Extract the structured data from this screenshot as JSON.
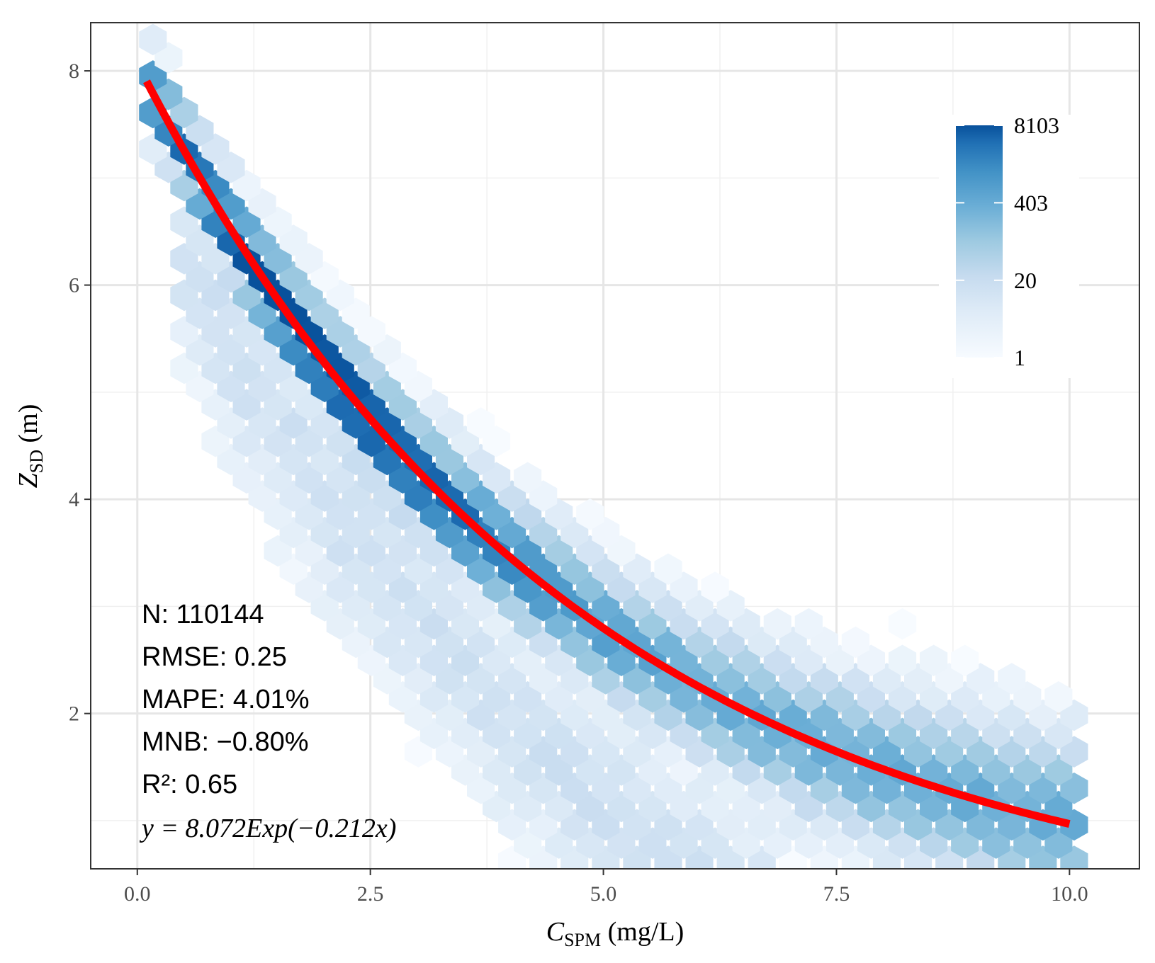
{
  "chart_data": {
    "type": "hexbin",
    "x_label_main": "C",
    "x_label_sub": "SPM",
    "x_label_unit": " (mg/L)",
    "y_label_main": "Z",
    "y_label_sub": "SD",
    "y_label_unit": " (m)",
    "xlim": [
      -0.5,
      10.75
    ],
    "ylim": [
      0.55,
      8.45
    ],
    "x_ticks": [
      0,
      2.5,
      5,
      7.5,
      10
    ],
    "x_tick_labels": [
      "0.0",
      "2.5",
      "5.0",
      "7.5",
      "10.0"
    ],
    "y_ticks": [
      2,
      4,
      6,
      8
    ],
    "y_tick_labels": [
      "2",
      "4",
      "6",
      "8"
    ],
    "grid": true,
    "fit": {
      "model": "y = a*exp(b*x)",
      "a": 8.072,
      "b": -0.212,
      "x_range": [
        0.1,
        10.0
      ],
      "color": "#ff0000"
    },
    "stats": {
      "n": "N: 110144",
      "rmse": "RMSE: 0.25",
      "mape": "MAPE: 4.01%",
      "mnb": "MNB: −0.80%",
      "r2": "R²: 0.65",
      "equation": "y = 8.072Exp(−0.212x)"
    },
    "legend": {
      "position": "top-right",
      "labels": [
        "8103",
        "403",
        "20",
        "1"
      ],
      "scale": "log",
      "count_range": [
        1,
        8103
      ],
      "color_low": "#f7fbff",
      "color_high": "#08519c"
    },
    "cmap": [
      "#f7fbff",
      "#deebf7",
      "#c6dbef",
      "#9ecae1",
      "#6baed6",
      "#4292c6",
      "#2171b5",
      "#08519c"
    ]
  }
}
